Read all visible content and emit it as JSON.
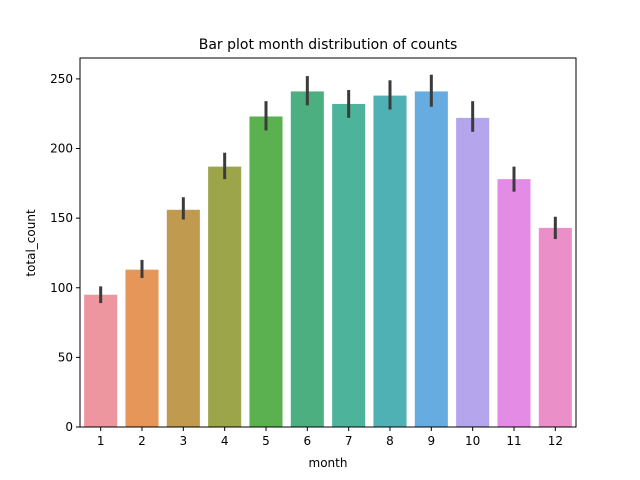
{
  "chart_data": {
    "type": "bar",
    "title": "Bar plot month distribution of counts",
    "xlabel": "month",
    "ylabel": "total_count",
    "categories": [
      "1",
      "2",
      "3",
      "4",
      "5",
      "6",
      "7",
      "8",
      "9",
      "10",
      "11",
      "12"
    ],
    "values": [
      95,
      113,
      156,
      187,
      223,
      241,
      232,
      238,
      241,
      222,
      178,
      143
    ],
    "error_low": [
      89,
      107,
      149,
      178,
      213,
      231,
      222,
      228,
      230,
      212,
      169,
      135
    ],
    "error_high": [
      101,
      120,
      165,
      197,
      234,
      252,
      242,
      249,
      253,
      234,
      187,
      151
    ],
    "ylim": [
      0,
      265
    ],
    "yticks": [
      0,
      50,
      100,
      150,
      200,
      250
    ],
    "grid": false,
    "colors": [
      "#ed96a0",
      "#e59658",
      "#c09a4e",
      "#9ca54a",
      "#5bb04f",
      "#4caf80",
      "#4db39a",
      "#4fb1b3",
      "#67ace0",
      "#b5a5ec",
      "#e38be5",
      "#ea8fc8"
    ],
    "error_color": "#3b3b3b"
  }
}
